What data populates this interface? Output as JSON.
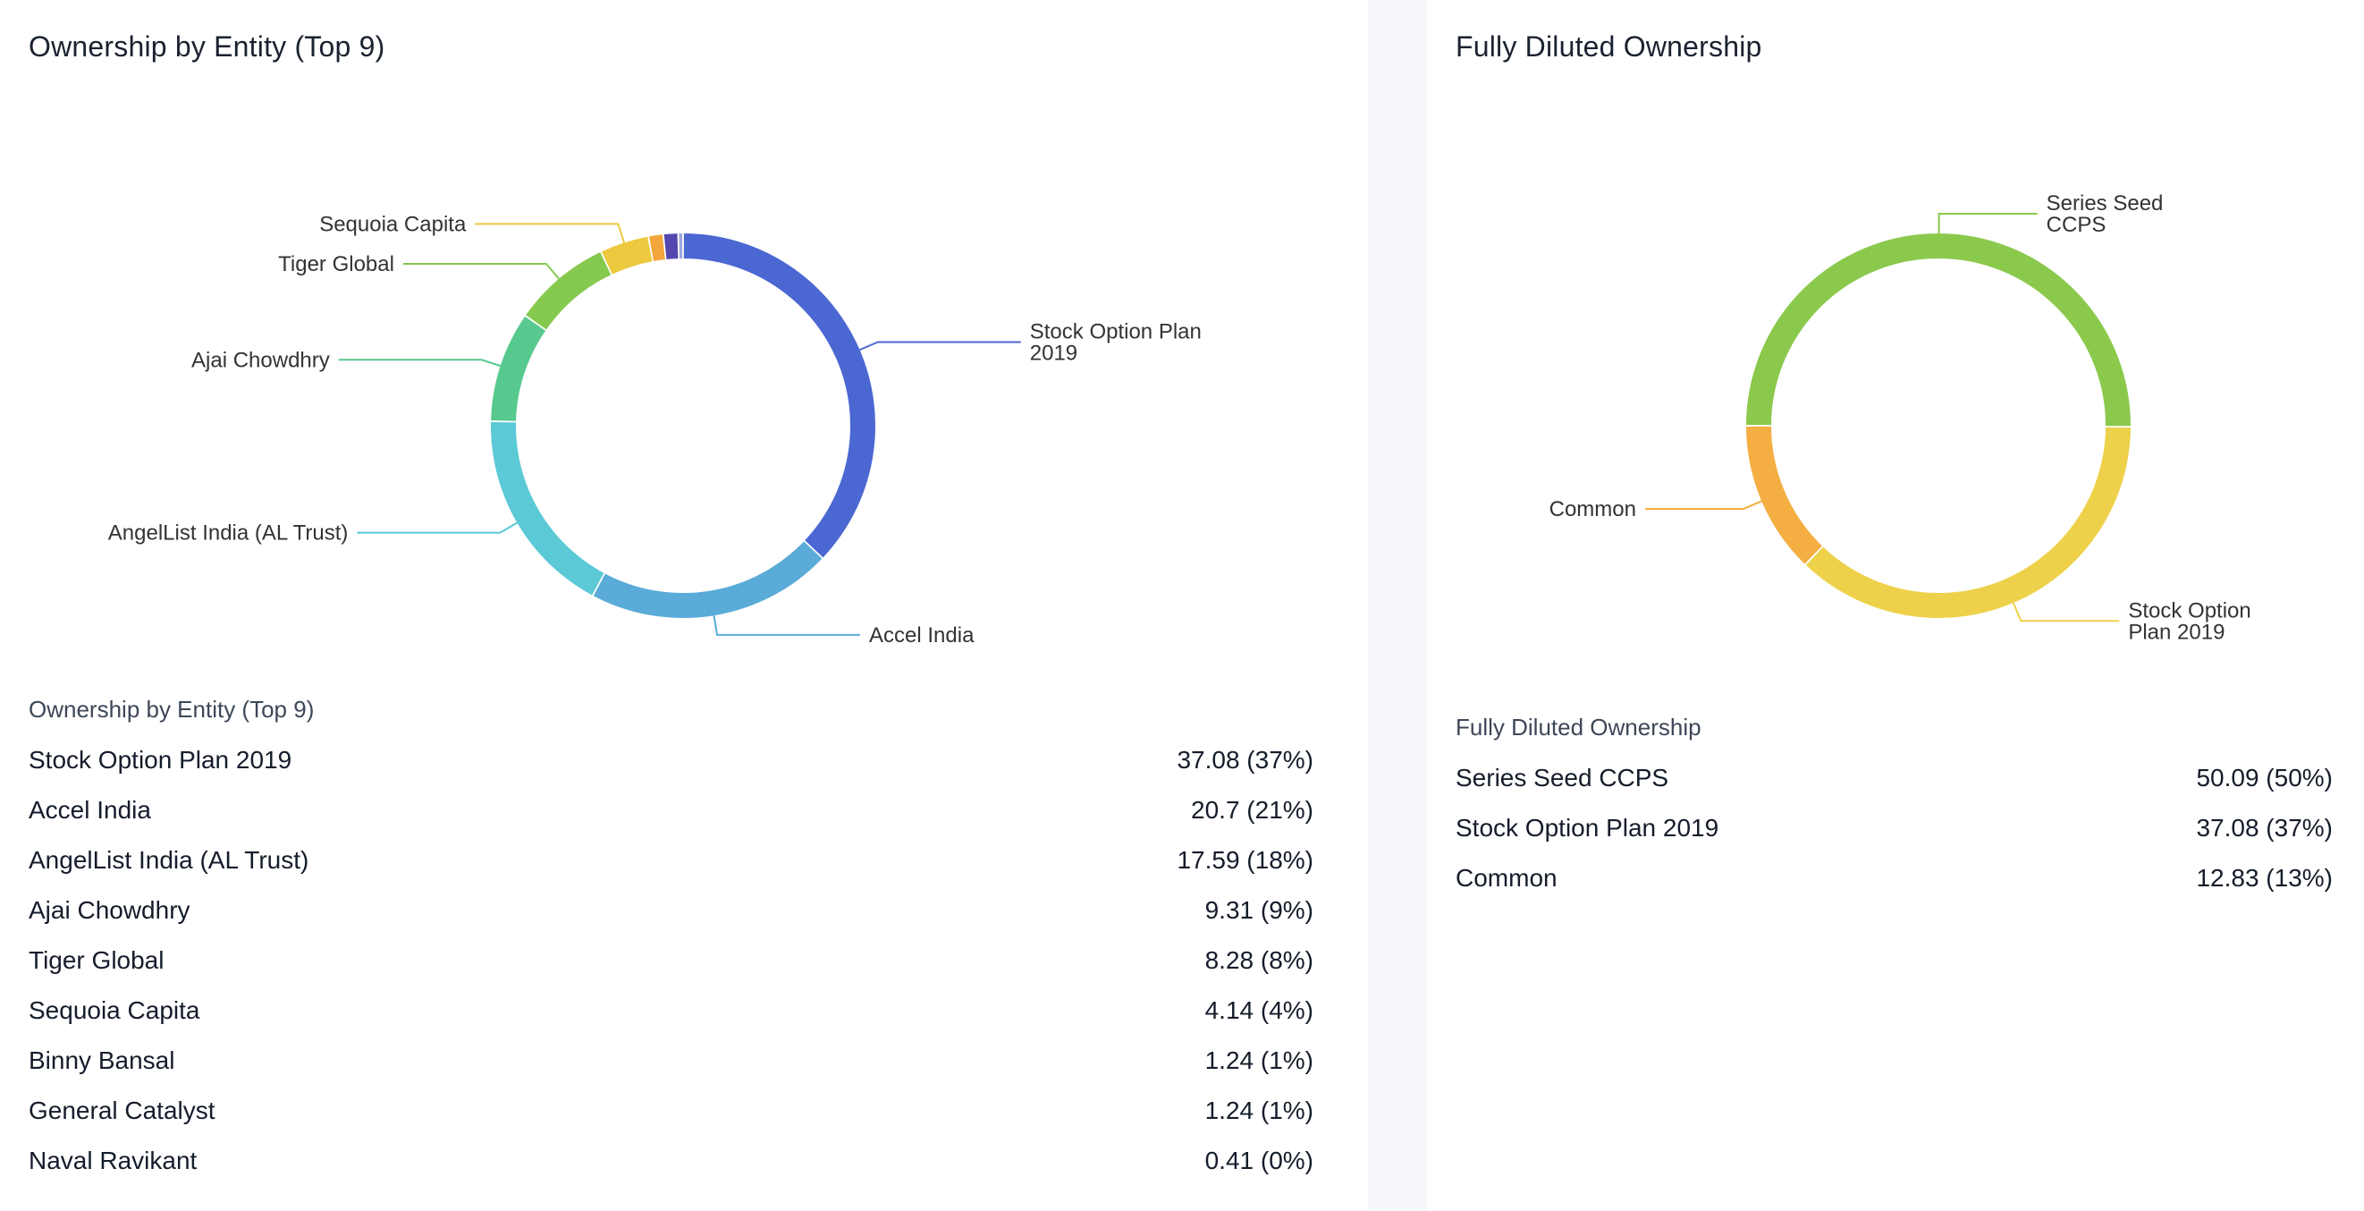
{
  "left": {
    "title": "Ownership by Entity (Top 9)",
    "table_caption": "Ownership by Entity (Top 9)",
    "rows": [
      {
        "name": "Stock Option Plan 2019",
        "value": "37.08 (37%)"
      },
      {
        "name": "Accel India",
        "value": "20.7 (21%)"
      },
      {
        "name": "AngelList India (AL Trust)",
        "value": "17.59 (18%)"
      },
      {
        "name": "Ajai Chowdhry",
        "value": "9.31 (9%)"
      },
      {
        "name": "Tiger Global",
        "value": "8.28 (8%)"
      },
      {
        "name": "Sequoia Capita",
        "value": "4.14 (4%)"
      },
      {
        "name": "Binny Bansal",
        "value": "1.24 (1%)"
      },
      {
        "name": "General Catalyst",
        "value": "1.24 (1%)"
      },
      {
        "name": "Naval Ravikant",
        "value": "0.41 (0%)"
      }
    ]
  },
  "right": {
    "title": "Fully Diluted Ownership",
    "table_caption": "Fully Diluted Ownership",
    "rows": [
      {
        "name": "Series Seed CCPS",
        "value": "50.09 (50%)"
      },
      {
        "name": "Stock Option Plan 2019",
        "value": "37.08 (37%)"
      },
      {
        "name": "Common",
        "value": "12.83 (13%)"
      }
    ]
  },
  "chart_data": [
    {
      "type": "pie",
      "donut": true,
      "title": "Ownership by Entity (Top 9)",
      "start_angle_deg": 270,
      "labels": [
        "Stock Option Plan 2019",
        "Accel India",
        "AngelList India (AL Trust)",
        "Ajai Chowdhry",
        "Tiger Global",
        "Sequoia Capita",
        "Binny Bansal",
        "General Catalyst",
        "Naval Ravikant"
      ],
      "values": [
        37.08,
        20.7,
        17.59,
        9.31,
        8.28,
        4.14,
        1.24,
        1.24,
        0.41
      ],
      "colors": [
        "#4b67d2",
        "#5aabd8",
        "#5bc9d6",
        "#57c98f",
        "#86c94f",
        "#ecc93e",
        "#f2a63c",
        "#5248b0",
        "#9ea8e0"
      ],
      "callout_labels": [
        [
          "Stock Option Plan",
          "2019"
        ],
        [
          "Accel India"
        ],
        [
          "AngelList India (AL Trust)"
        ],
        [
          "Ajai Chowdhry"
        ],
        [
          "Tiger Global"
        ],
        [
          "Sequoia Capita"
        ],
        [],
        [],
        []
      ]
    },
    {
      "type": "pie",
      "donut": true,
      "title": "Fully Diluted Ownership",
      "start_angle_deg": 180,
      "labels": [
        "Series Seed CCPS",
        "Stock Option Plan 2019",
        "Common"
      ],
      "values": [
        50.09,
        37.08,
        12.83
      ],
      "colors": [
        "#8bc94d",
        "#eed14a",
        "#f4ae42"
      ],
      "callout_labels": [
        [
          "Series Seed",
          "CCPS"
        ],
        [
          "Stock Option",
          "Plan 2019"
        ],
        [
          "Common"
        ]
      ]
    }
  ]
}
